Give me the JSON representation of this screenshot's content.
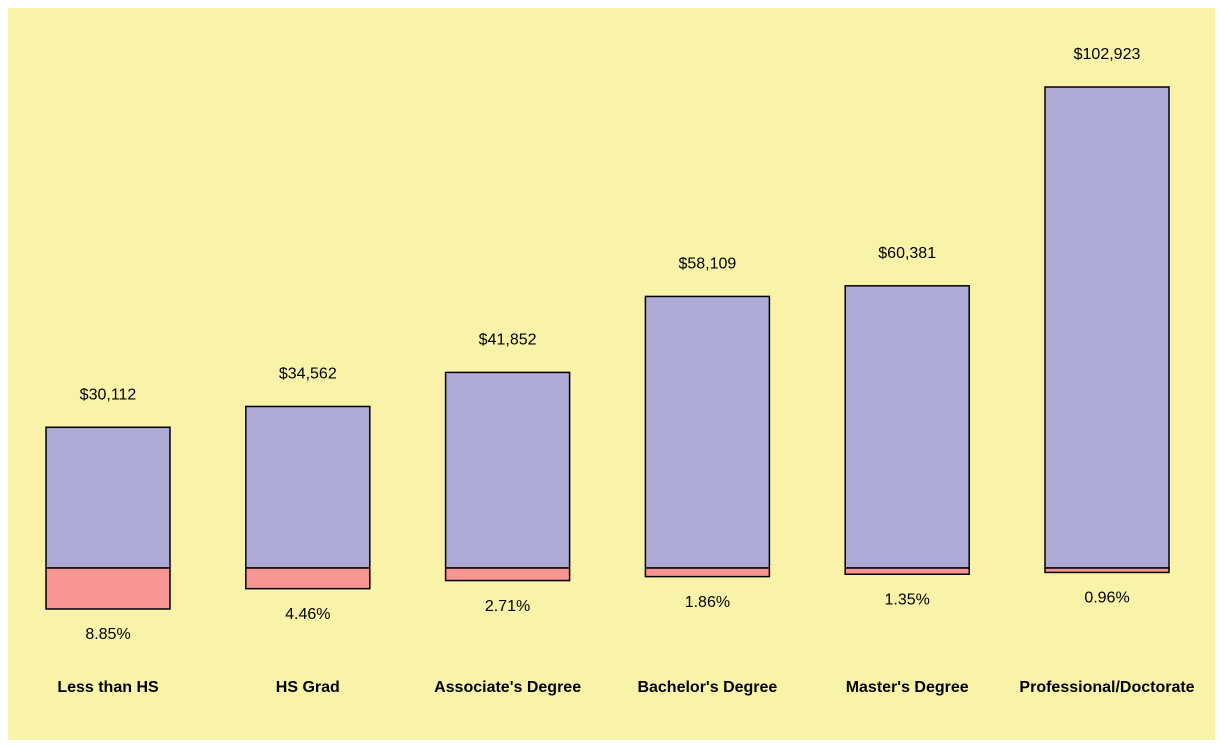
{
  "chart_data": {
    "type": "bar",
    "categories": [
      "Less than HS",
      "HS Grad",
      "Associate's Degree",
      "Bachelor's Degree",
      "Master's Degree",
      "Professional/Doctorate"
    ],
    "series": [
      {
        "color": "#adabd6",
        "values": [
          30112,
          34562,
          41852,
          58109,
          60381,
          102923
        ],
        "value_labels": [
          "$30,112",
          "$34,562",
          "$41,852",
          "$58,109",
          "$60,381",
          "$102,923"
        ]
      },
      {
        "color": "#f79594",
        "values": [
          8.85,
          4.46,
          2.71,
          1.86,
          1.35,
          0.96
        ],
        "value_labels": [
          "8.85%",
          "4.46%",
          "2.71%",
          "1.86%",
          "1.35%",
          "0.96%"
        ]
      }
    ]
  }
}
